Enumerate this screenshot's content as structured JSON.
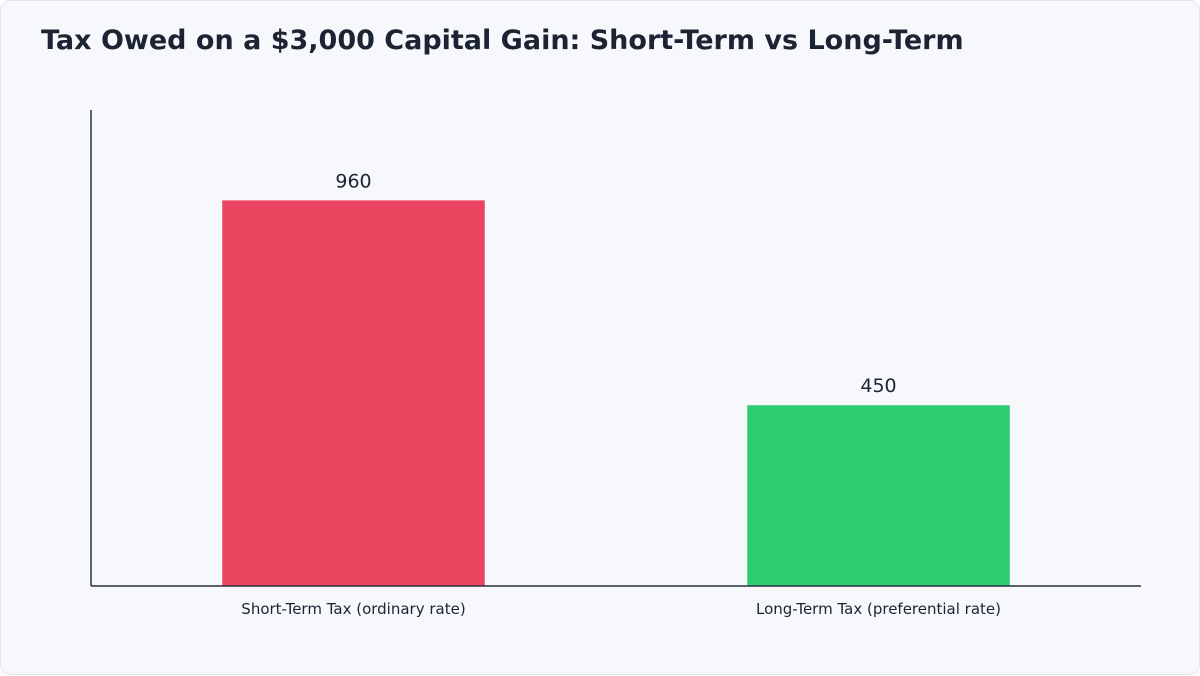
{
  "chart_data": {
    "type": "bar",
    "title": "Tax Owed on a $3,000 Capital Gain: Short-Term vs Long-Term",
    "categories": [
      "Short-Term Tax (ordinary rate)",
      "Long-Term Tax (preferential rate)"
    ],
    "values": [
      960,
      450
    ],
    "colors": [
      "#e94560",
      "#2ecc71"
    ],
    "ylim": [
      0,
      1185
    ],
    "grid": false,
    "show_data_labels": true
  }
}
